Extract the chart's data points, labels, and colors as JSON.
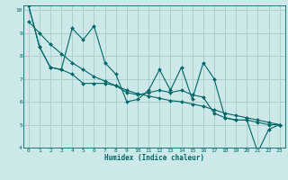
{
  "xlabel": "Humidex (Indice chaleur)",
  "xlim": [
    -0.5,
    23.5
  ],
  "ylim": [
    4,
    10.2
  ],
  "yticks": [
    4,
    5,
    6,
    7,
    8,
    9,
    10
  ],
  "xticks": [
    0,
    1,
    2,
    3,
    4,
    5,
    6,
    7,
    8,
    9,
    10,
    11,
    12,
    13,
    14,
    15,
    16,
    17,
    18,
    19,
    20,
    21,
    22,
    23
  ],
  "bg_color": "#cce8e8",
  "grid_color": "#aacfcf",
  "line_color": "#006666",
  "series1": [
    10.2,
    8.4,
    7.5,
    7.4,
    9.2,
    8.7,
    9.3,
    7.7,
    7.2,
    6.0,
    6.1,
    6.5,
    7.4,
    6.5,
    7.5,
    6.1,
    7.7,
    7.0,
    5.3,
    5.2,
    5.2,
    3.8,
    4.8,
    5.0
  ],
  "series2": [
    10.2,
    8.4,
    7.5,
    7.4,
    7.2,
    6.8,
    6.8,
    6.8,
    6.7,
    6.4,
    6.3,
    6.4,
    6.5,
    6.4,
    6.5,
    6.3,
    6.2,
    5.5,
    5.3,
    5.2,
    5.2,
    5.1,
    5.0,
    5.0
  ],
  "series3": [
    9.5,
    9.0,
    8.5,
    8.1,
    7.7,
    7.4,
    7.1,
    6.9,
    6.7,
    6.5,
    6.35,
    6.25,
    6.15,
    6.05,
    6.0,
    5.9,
    5.8,
    5.65,
    5.5,
    5.4,
    5.3,
    5.2,
    5.1,
    5.0
  ]
}
